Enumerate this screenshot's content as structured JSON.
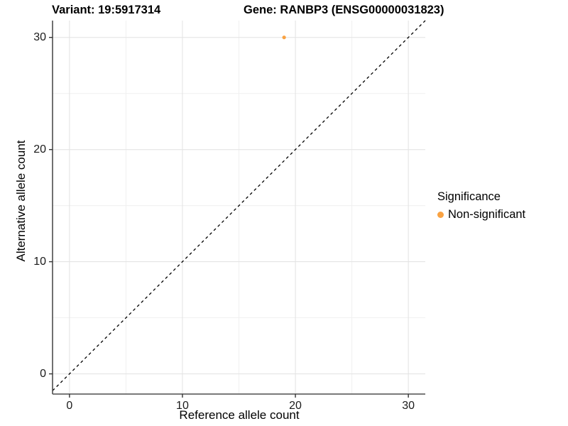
{
  "titles": {
    "variant": "Variant: 19:5917314",
    "gene": "Gene: RANBP3 (ENSG00000031823)"
  },
  "chart_data": {
    "type": "scatter",
    "xlabel": "Reference allele count",
    "ylabel": "Alternative allele count",
    "xlim": [
      -1.5,
      31.5
    ],
    "ylim": [
      -1.8,
      31.5
    ],
    "x_ticks": [
      0,
      10,
      20,
      30
    ],
    "y_ticks": [
      0,
      10,
      20,
      30
    ],
    "x_minor_ticks": [
      5,
      15,
      25
    ],
    "y_minor_ticks": [
      5,
      15,
      25
    ],
    "grid": true,
    "diagonal_line": {
      "style": "dashed",
      "from": [
        -1.5,
        -1.5
      ],
      "to": [
        31.5,
        31.5
      ],
      "color": "#000000"
    },
    "series": [
      {
        "name": "Non-significant",
        "color": "#F9A242",
        "points": [
          {
            "x": 19,
            "y": 30
          }
        ]
      }
    ],
    "legend": {
      "title": "Significance",
      "position": "right",
      "items": [
        {
          "label": "Non-significant",
          "color": "#F9A242"
        }
      ]
    }
  },
  "colors": {
    "background": "#ffffff",
    "major_grid": "#e4e4e4",
    "minor_grid": "#efefef",
    "axis_line": "#4d4d4d",
    "tick_mark": "#333333",
    "point": "#F9A242",
    "text": "#000000"
  }
}
